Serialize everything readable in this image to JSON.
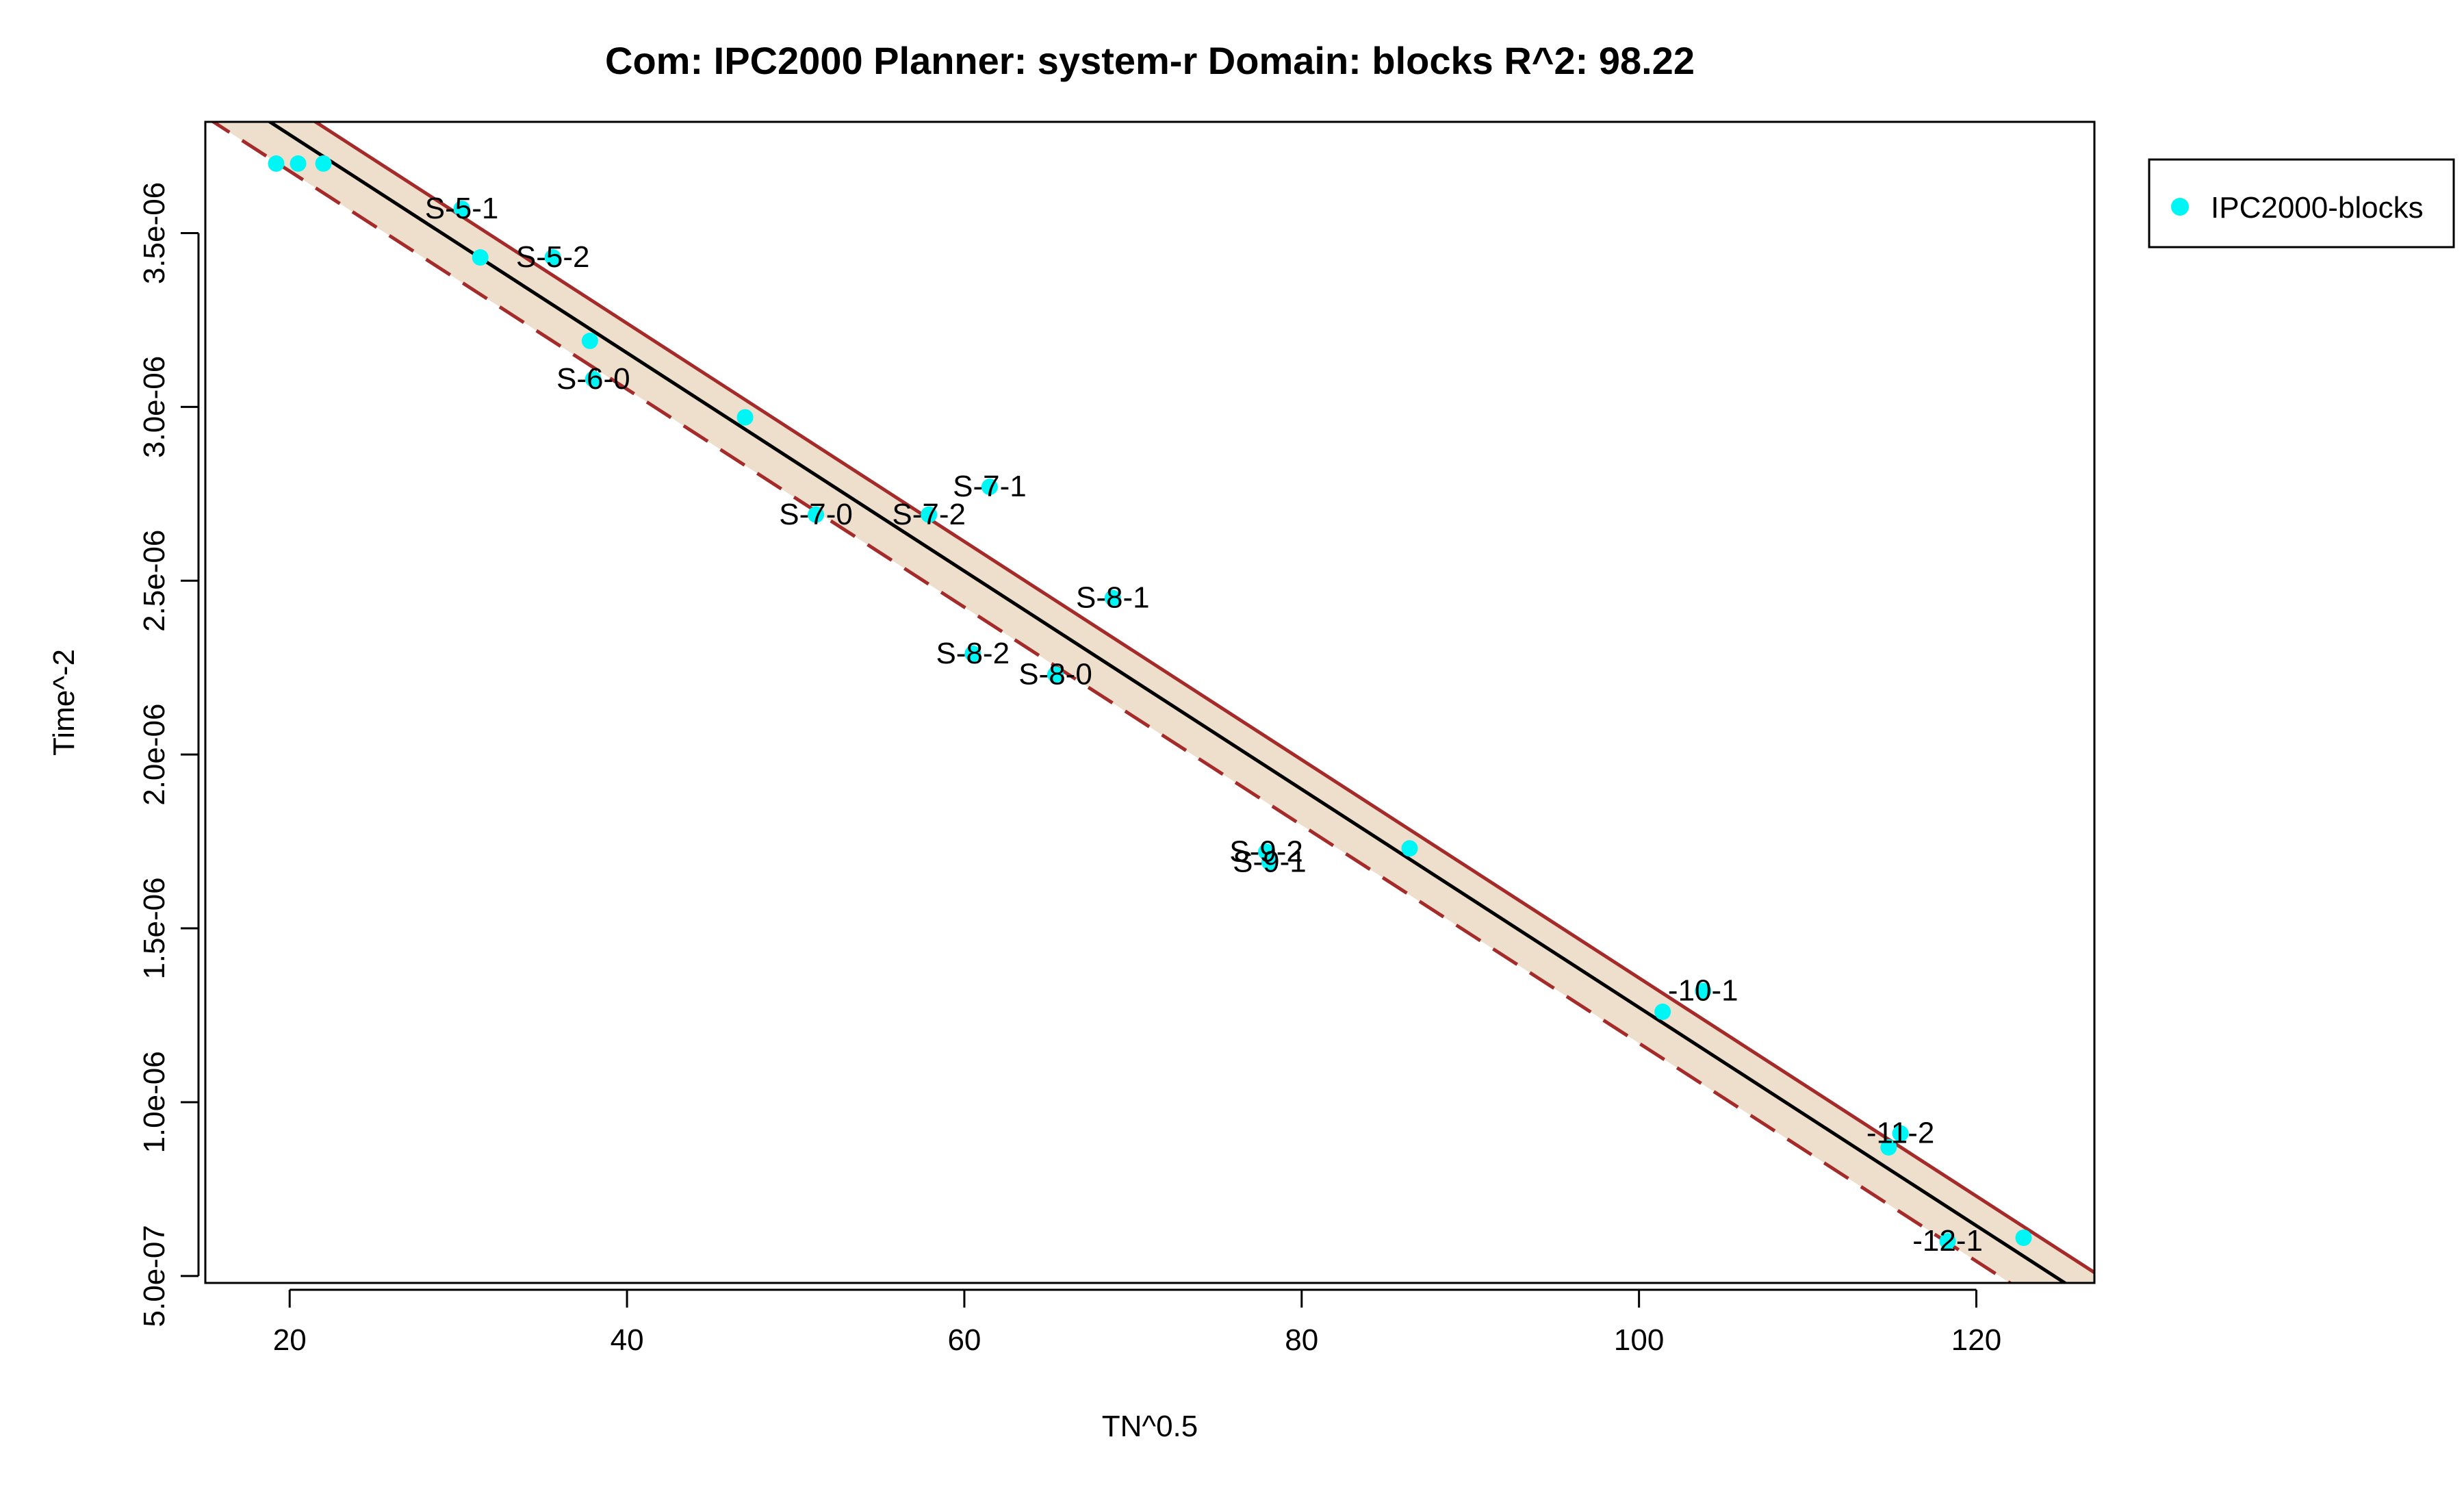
{
  "chart_data": {
    "type": "scatter",
    "title": "Com: IPC2000 Planner: system-r Domain: blocks R^2: 98.22",
    "xlabel": "TN^0.5",
    "ylabel": "Time^-2",
    "xlim": [
      15,
      127
    ],
    "ylim": [
      4.8e-07,
      3.82e-06
    ],
    "x_ticks": [
      20,
      40,
      60,
      80,
      100,
      120
    ],
    "x_tick_labels": [
      "20",
      "40",
      "60",
      "80",
      "100",
      "120"
    ],
    "y_ticks": [
      5e-07,
      1e-06,
      1.5e-06,
      2e-06,
      2.5e-06,
      3e-06,
      3.5e-06
    ],
    "y_tick_labels": [
      "5.0e-07",
      "1.0e-06",
      "1.5e-06",
      "2.0e-06",
      "2.5e-06",
      "3.0e-06",
      "3.5e-06"
    ],
    "grid": false,
    "legend": {
      "position": "right",
      "entries": [
        {
          "name": "IPC2000-blocks",
          "color": "#00f5f5"
        }
      ]
    },
    "fit_line": {
      "x": [
        15,
        127
      ],
      "y": [
        3.94e-06,
        4.25e-07
      ],
      "color": "#000000"
    },
    "band_upper": {
      "x": [
        15,
        127
      ],
      "y": [
        4.025e-06,
        5.1e-07
      ]
    },
    "band_lower": {
      "x": [
        15,
        127
      ],
      "y": [
        3.835e-06,
        3.23e-07
      ]
    },
    "band_fill": "#eedfcc",
    "band_line_color": "#a52a2a",
    "series": [
      {
        "name": "IPC2000-blocks",
        "color": "#00f5f5",
        "points": [
          {
            "x": 19.2,
            "y": 3.7e-06,
            "label": ""
          },
          {
            "x": 20.5,
            "y": 3.7e-06,
            "label": ""
          },
          {
            "x": 22.0,
            "y": 3.7e-06,
            "label": ""
          },
          {
            "x": 30.2,
            "y": 3.57e-06,
            "label": "S-5-1"
          },
          {
            "x": 31.3,
            "y": 3.43e-06,
            "label": ""
          },
          {
            "x": 35.6,
            "y": 3.43e-06,
            "label": "S-5-2"
          },
          {
            "x": 37.8,
            "y": 3.19e-06,
            "label": ""
          },
          {
            "x": 38.0,
            "y": 3.08e-06,
            "label": "S-6-0"
          },
          {
            "x": 47.0,
            "y": 2.97e-06,
            "label": ""
          },
          {
            "x": 51.2,
            "y": 2.69e-06,
            "label": "S-7-0"
          },
          {
            "x": 57.9,
            "y": 2.69e-06,
            "label": "S-7-2"
          },
          {
            "x": 61.5,
            "y": 2.77e-06,
            "label": "S-7-1"
          },
          {
            "x": 60.5,
            "y": 2.29e-06,
            "label": "S-8-2"
          },
          {
            "x": 65.4,
            "y": 2.23e-06,
            "label": "S-8-0"
          },
          {
            "x": 68.8,
            "y": 2.45e-06,
            "label": "S-8-1"
          },
          {
            "x": 78.1,
            "y": 1.69e-06,
            "label": "S-9-1"
          },
          {
            "x": 77.9,
            "y": 1.72e-06,
            "label": "S-9-2"
          },
          {
            "x": 86.4,
            "y": 1.73e-06,
            "label": ""
          },
          {
            "x": 101.4,
            "y": 1.26e-06,
            "label": ""
          },
          {
            "x": 103.8,
            "y": 1.32e-06,
            "label": "-10-1"
          },
          {
            "x": 114.8,
            "y": 8.7e-07,
            "label": ""
          },
          {
            "x": 115.5,
            "y": 9.1e-07,
            "label": "-11-2"
          },
          {
            "x": 118.3,
            "y": 6e-07,
            "label": "-12-1"
          },
          {
            "x": 122.8,
            "y": 6.1e-07,
            "label": ""
          }
        ]
      }
    ]
  }
}
